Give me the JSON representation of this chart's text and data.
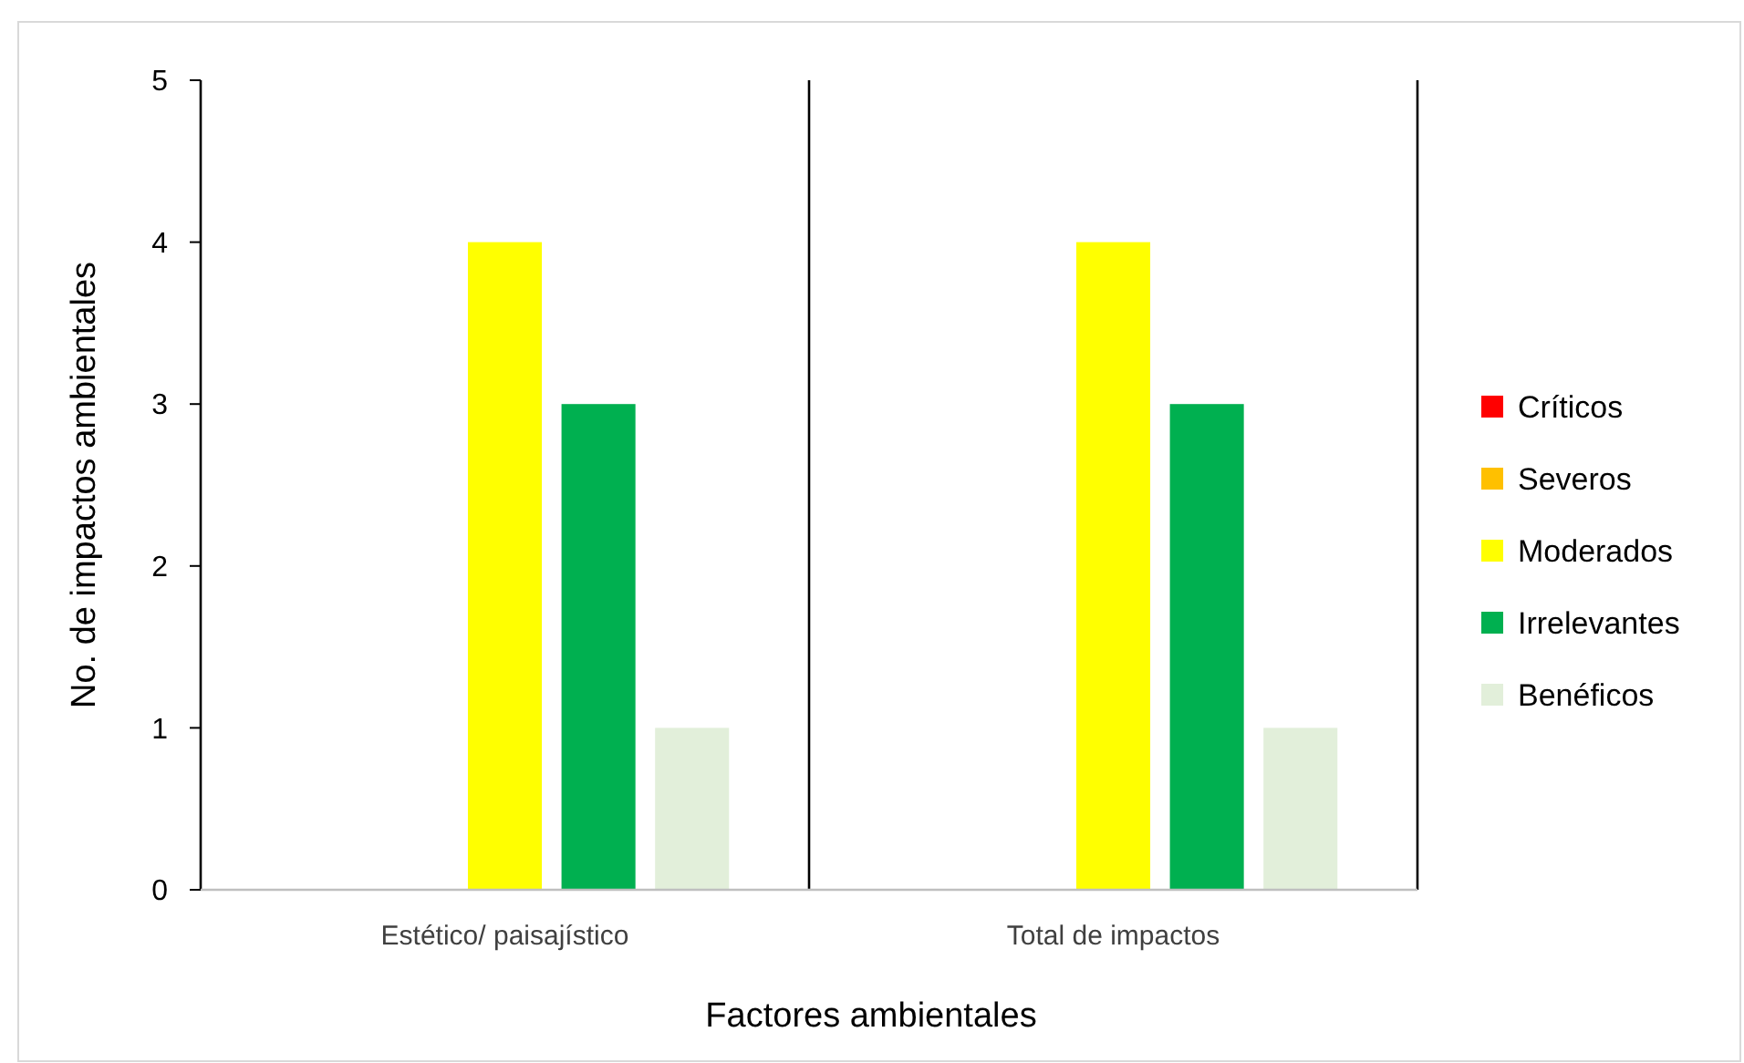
{
  "chart_data": {
    "type": "bar",
    "xlabel": "Factores ambientales",
    "ylabel": "No. de impactos ambientales",
    "categories": [
      "Estético/ paisajístico",
      "Total de impactos"
    ],
    "series": [
      {
        "name": "Críticos",
        "color": "#ff0000",
        "values": [
          0,
          0
        ]
      },
      {
        "name": "Severos",
        "color": "#ffc000",
        "values": [
          0,
          0
        ]
      },
      {
        "name": "Moderados",
        "color": "#ffff00",
        "values": [
          4,
          4
        ]
      },
      {
        "name": "Irrelevantes",
        "color": "#00b050",
        "values": [
          3,
          3
        ]
      },
      {
        "name": "Benéficos",
        "color": "#e2efda",
        "values": [
          1,
          1
        ]
      }
    ],
    "ylim": [
      0,
      5
    ],
    "yticks": [
      0,
      1,
      2,
      3,
      4,
      5
    ],
    "grid": false,
    "legend": "right"
  }
}
